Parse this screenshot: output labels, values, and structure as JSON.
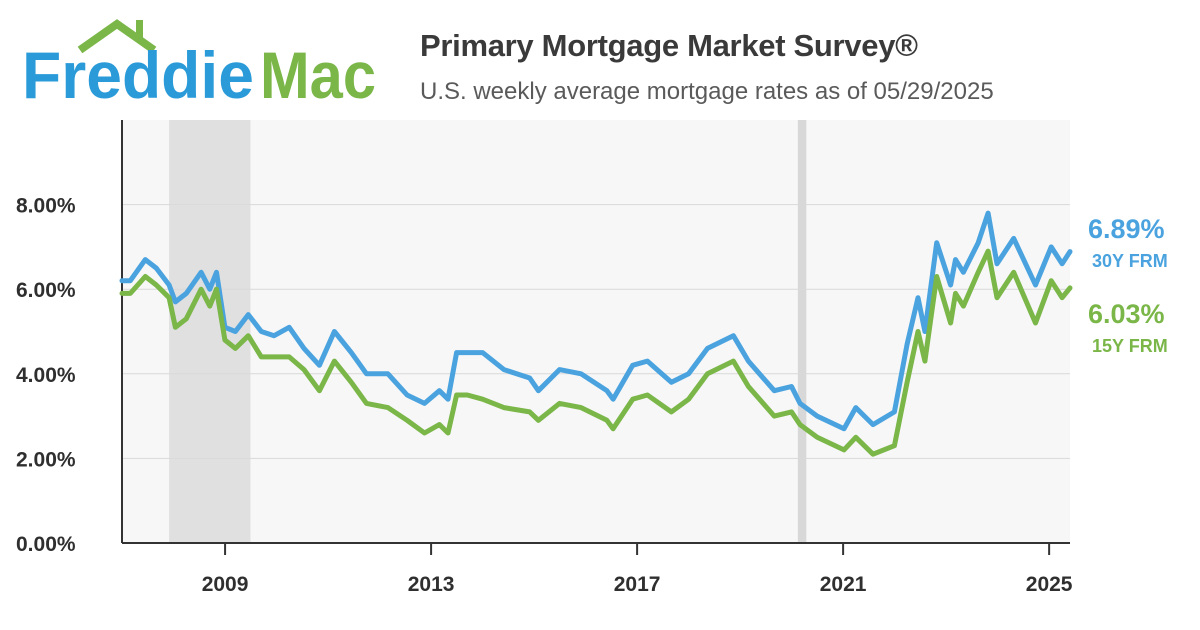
{
  "brand": {
    "logo_text_part1": "Freddie",
    "logo_text_part2": "Mac",
    "colors": {
      "blue": "#2a9bd8",
      "green": "#7ab648"
    }
  },
  "header": {
    "title": "Primary Mortgage Market Survey®",
    "subtitle": "U.S. weekly average mortgage rates as of 05/29/2025"
  },
  "chart_data": {
    "type": "line",
    "title": "Primary Mortgage Market Survey®",
    "subtitle": "U.S. weekly average mortgage rates as of 05/29/2025",
    "xlabel": "",
    "ylabel": "",
    "xlim": [
      "2007-01-01",
      "2025-05-29"
    ],
    "ylim": [
      0,
      10
    ],
    "y_ticks": [
      "0.00%",
      "2.00%",
      "4.00%",
      "6.00%",
      "8.00%"
    ],
    "x_ticks": [
      "2009",
      "2013",
      "2017",
      "2021",
      "2025"
    ],
    "grid": true,
    "recession_shading": [
      {
        "start": "2007-12-01",
        "end": "2009-06-30"
      },
      {
        "start": "2020-02-15",
        "end": "2020-04-15"
      }
    ],
    "series": [
      {
        "name": "30Y FRM",
        "color": "#4aa3df",
        "end_value_label": "6.89%",
        "end_name_label": "30Y FRM",
        "points": [
          [
            "2007-01-01",
            6.2
          ],
          [
            "2007-03-01",
            6.2
          ],
          [
            "2007-06-15",
            6.7
          ],
          [
            "2007-09-01",
            6.5
          ],
          [
            "2007-12-01",
            6.1
          ],
          [
            "2008-01-15",
            5.7
          ],
          [
            "2008-04-01",
            5.9
          ],
          [
            "2008-07-15",
            6.4
          ],
          [
            "2008-09-15",
            6.0
          ],
          [
            "2008-11-01",
            6.4
          ],
          [
            "2008-12-31",
            5.1
          ],
          [
            "2009-03-15",
            5.0
          ],
          [
            "2009-06-15",
            5.4
          ],
          [
            "2009-09-15",
            5.0
          ],
          [
            "2009-12-15",
            4.9
          ],
          [
            "2010-04-01",
            5.1
          ],
          [
            "2010-07-15",
            4.6
          ],
          [
            "2010-11-01",
            4.2
          ],
          [
            "2011-02-15",
            5.0
          ],
          [
            "2011-06-15",
            4.5
          ],
          [
            "2011-10-01",
            4.0
          ],
          [
            "2012-03-01",
            4.0
          ],
          [
            "2012-07-15",
            3.5
          ],
          [
            "2012-11-15",
            3.3
          ],
          [
            "2013-03-01",
            3.6
          ],
          [
            "2013-05-01",
            3.4
          ],
          [
            "2013-07-01",
            4.5
          ],
          [
            "2013-09-15",
            4.5
          ],
          [
            "2014-01-01",
            4.5
          ],
          [
            "2014-06-01",
            4.1
          ],
          [
            "2014-12-01",
            3.9
          ],
          [
            "2015-02-01",
            3.6
          ],
          [
            "2015-07-01",
            4.1
          ],
          [
            "2015-12-01",
            4.0
          ],
          [
            "2016-06-01",
            3.6
          ],
          [
            "2016-07-15",
            3.4
          ],
          [
            "2016-12-01",
            4.2
          ],
          [
            "2017-03-15",
            4.3
          ],
          [
            "2017-09-01",
            3.8
          ],
          [
            "2018-01-01",
            4.0
          ],
          [
            "2018-05-15",
            4.6
          ],
          [
            "2018-11-15",
            4.9
          ],
          [
            "2019-03-01",
            4.3
          ],
          [
            "2019-09-01",
            3.6
          ],
          [
            "2020-01-01",
            3.7
          ],
          [
            "2020-03-01",
            3.3
          ],
          [
            "2020-07-01",
            3.0
          ],
          [
            "2021-01-07",
            2.7
          ],
          [
            "2021-04-01",
            3.2
          ],
          [
            "2021-08-01",
            2.8
          ],
          [
            "2021-12-31",
            3.1
          ],
          [
            "2022-03-31",
            4.7
          ],
          [
            "2022-06-16",
            5.8
          ],
          [
            "2022-08-04",
            5.0
          ],
          [
            "2022-10-27",
            7.1
          ],
          [
            "2023-02-02",
            6.1
          ],
          [
            "2023-03-09",
            6.7
          ],
          [
            "2023-05-04",
            6.4
          ],
          [
            "2023-08-17",
            7.1
          ],
          [
            "2023-10-26",
            7.8
          ],
          [
            "2023-12-28",
            6.6
          ],
          [
            "2024-04-25",
            7.2
          ],
          [
            "2024-09-26",
            6.1
          ],
          [
            "2025-01-16",
            7.0
          ],
          [
            "2025-04-03",
            6.6
          ],
          [
            "2025-05-29",
            6.89
          ]
        ]
      },
      {
        "name": "15Y FRM",
        "color": "#7ab648",
        "end_value_label": "6.03%",
        "end_name_label": "15Y FRM",
        "points": [
          [
            "2007-01-01",
            5.9
          ],
          [
            "2007-03-01",
            5.9
          ],
          [
            "2007-06-15",
            6.3
          ],
          [
            "2007-09-01",
            6.1
          ],
          [
            "2007-12-01",
            5.8
          ],
          [
            "2008-01-15",
            5.1
          ],
          [
            "2008-04-01",
            5.3
          ],
          [
            "2008-07-15",
            6.0
          ],
          [
            "2008-09-15",
            5.6
          ],
          [
            "2008-11-01",
            6.0
          ],
          [
            "2008-12-31",
            4.8
          ],
          [
            "2009-03-15",
            4.6
          ],
          [
            "2009-06-15",
            4.9
          ],
          [
            "2009-09-15",
            4.4
          ],
          [
            "2009-12-15",
            4.4
          ],
          [
            "2010-04-01",
            4.4
          ],
          [
            "2010-07-15",
            4.1
          ],
          [
            "2010-11-01",
            3.6
          ],
          [
            "2011-02-15",
            4.3
          ],
          [
            "2011-06-15",
            3.8
          ],
          [
            "2011-10-01",
            3.3
          ],
          [
            "2012-03-01",
            3.2
          ],
          [
            "2012-07-15",
            2.9
          ],
          [
            "2012-11-15",
            2.6
          ],
          [
            "2013-03-01",
            2.8
          ],
          [
            "2013-05-01",
            2.6
          ],
          [
            "2013-07-01",
            3.5
          ],
          [
            "2013-09-15",
            3.5
          ],
          [
            "2014-01-01",
            3.4
          ],
          [
            "2014-06-01",
            3.2
          ],
          [
            "2014-12-01",
            3.1
          ],
          [
            "2015-02-01",
            2.9
          ],
          [
            "2015-07-01",
            3.3
          ],
          [
            "2015-12-01",
            3.2
          ],
          [
            "2016-06-01",
            2.9
          ],
          [
            "2016-07-15",
            2.7
          ],
          [
            "2016-12-01",
            3.4
          ],
          [
            "2017-03-15",
            3.5
          ],
          [
            "2017-09-01",
            3.1
          ],
          [
            "2018-01-01",
            3.4
          ],
          [
            "2018-05-15",
            4.0
          ],
          [
            "2018-11-15",
            4.3
          ],
          [
            "2019-03-01",
            3.7
          ],
          [
            "2019-09-01",
            3.0
          ],
          [
            "2020-01-01",
            3.1
          ],
          [
            "2020-03-01",
            2.8
          ],
          [
            "2020-07-01",
            2.5
          ],
          [
            "2021-01-07",
            2.2
          ],
          [
            "2021-04-01",
            2.5
          ],
          [
            "2021-08-01",
            2.1
          ],
          [
            "2021-12-31",
            2.3
          ],
          [
            "2022-03-31",
            3.8
          ],
          [
            "2022-06-16",
            5.0
          ],
          [
            "2022-08-04",
            4.3
          ],
          [
            "2022-10-27",
            6.3
          ],
          [
            "2023-02-02",
            5.2
          ],
          [
            "2023-03-09",
            5.9
          ],
          [
            "2023-05-04",
            5.6
          ],
          [
            "2023-08-17",
            6.4
          ],
          [
            "2023-10-26",
            6.9
          ],
          [
            "2023-12-28",
            5.8
          ],
          [
            "2024-04-25",
            6.4
          ],
          [
            "2024-09-26",
            5.2
          ],
          [
            "2025-01-16",
            6.2
          ],
          [
            "2025-04-03",
            5.8
          ],
          [
            "2025-05-29",
            6.03
          ]
        ]
      }
    ]
  }
}
